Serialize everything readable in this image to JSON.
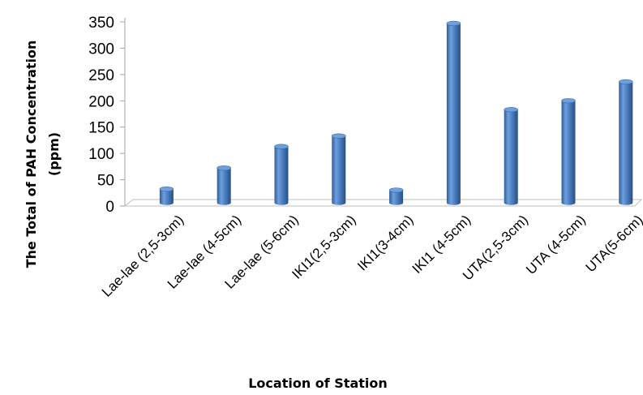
{
  "chart_data": {
    "type": "bar",
    "categories": [
      "Lae-lae (2,5-3cm)",
      "Lae-lae (4-5cm)",
      "Lae-lae (5-6cm)",
      "IKI1(2,5-3cm)",
      "IKI1(3-4cm)",
      "IKI1 (4-5cm)",
      "UTA(2,5-3cm)",
      "UTA (4-5cm)",
      "UTA(5-6cm)"
    ],
    "values": [
      26,
      66,
      107,
      127,
      24,
      341,
      177,
      194,
      230
    ],
    "xlabel": "Location of Station",
    "ylabel_lines": [
      "The Total of PAH Concentration",
      "(ppm)"
    ],
    "ylim": [
      0,
      350
    ],
    "yticks": [
      0,
      50,
      100,
      150,
      200,
      250,
      300,
      350
    ],
    "grid": false,
    "legend": "none",
    "style": "3d-cylinder",
    "bar_color": "#4a7ebb"
  }
}
